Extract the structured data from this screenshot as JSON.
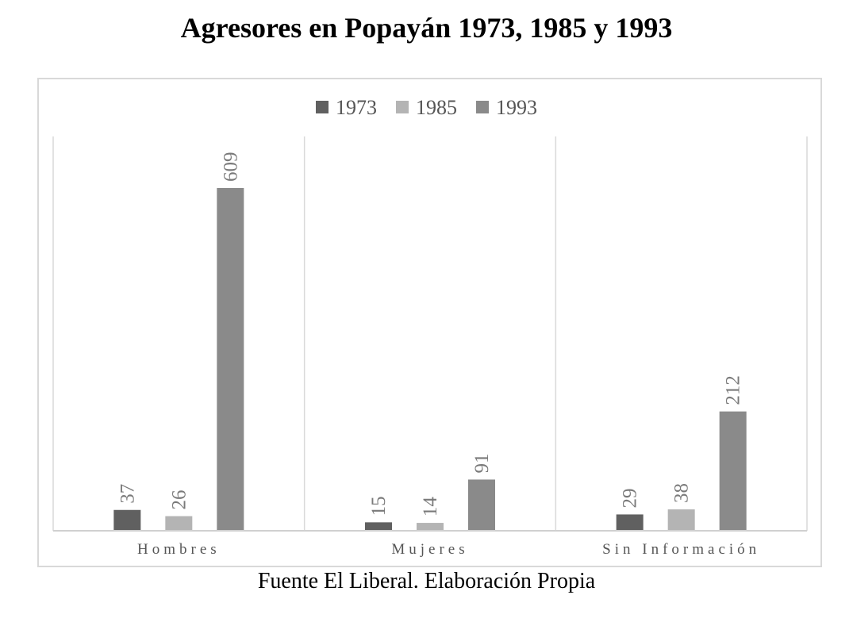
{
  "title": "Agresores en Popayán 1973, 1985 y 1993",
  "source": "Fuente El Liberal. Elaboración Propia",
  "chart_data": {
    "type": "bar",
    "title": "Agresores en Popayán 1973, 1985 y 1993",
    "categories": [
      "Hombres",
      "Mujeres",
      "Sin Información"
    ],
    "series": [
      {
        "name": "1973",
        "values": [
          37,
          15,
          29
        ],
        "color": "#606060"
      },
      {
        "name": "1985",
        "values": [
          26,
          14,
          38
        ],
        "color": "#b4b4b4"
      },
      {
        "name": "1993",
        "values": [
          609,
          91,
          212
        ],
        "color": "#8a8a8a"
      }
    ],
    "ylim": [
      0,
      700
    ],
    "grid": "vertical category separators",
    "legend": "top-center",
    "data_labels": true
  }
}
